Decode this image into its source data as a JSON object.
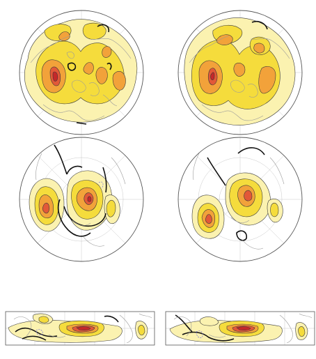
{
  "figure": {
    "panels": [
      {
        "id": "polar-top-left",
        "projection": "north-polar-stereographic"
      },
      {
        "id": "polar-top-right",
        "projection": "north-polar-stereographic"
      },
      {
        "id": "polar-middle-left",
        "projection": "north-polar-stereographic"
      },
      {
        "id": "polar-middle-right",
        "projection": "north-polar-stereographic"
      },
      {
        "id": "tropical-bottom-left",
        "projection": "cylindrical-equidistant"
      },
      {
        "id": "tropical-bottom-right",
        "projection": "cylindrical-equidistant"
      }
    ],
    "shading_colors": {
      "level1": "#fbf2b0",
      "level2": "#f5dc3c",
      "level3": "#f2a23a",
      "level4": "#e25838",
      "level5": "#c5282a"
    },
    "negative_contour_color": "#111111",
    "coastline_color": "#9a9a9a"
  }
}
